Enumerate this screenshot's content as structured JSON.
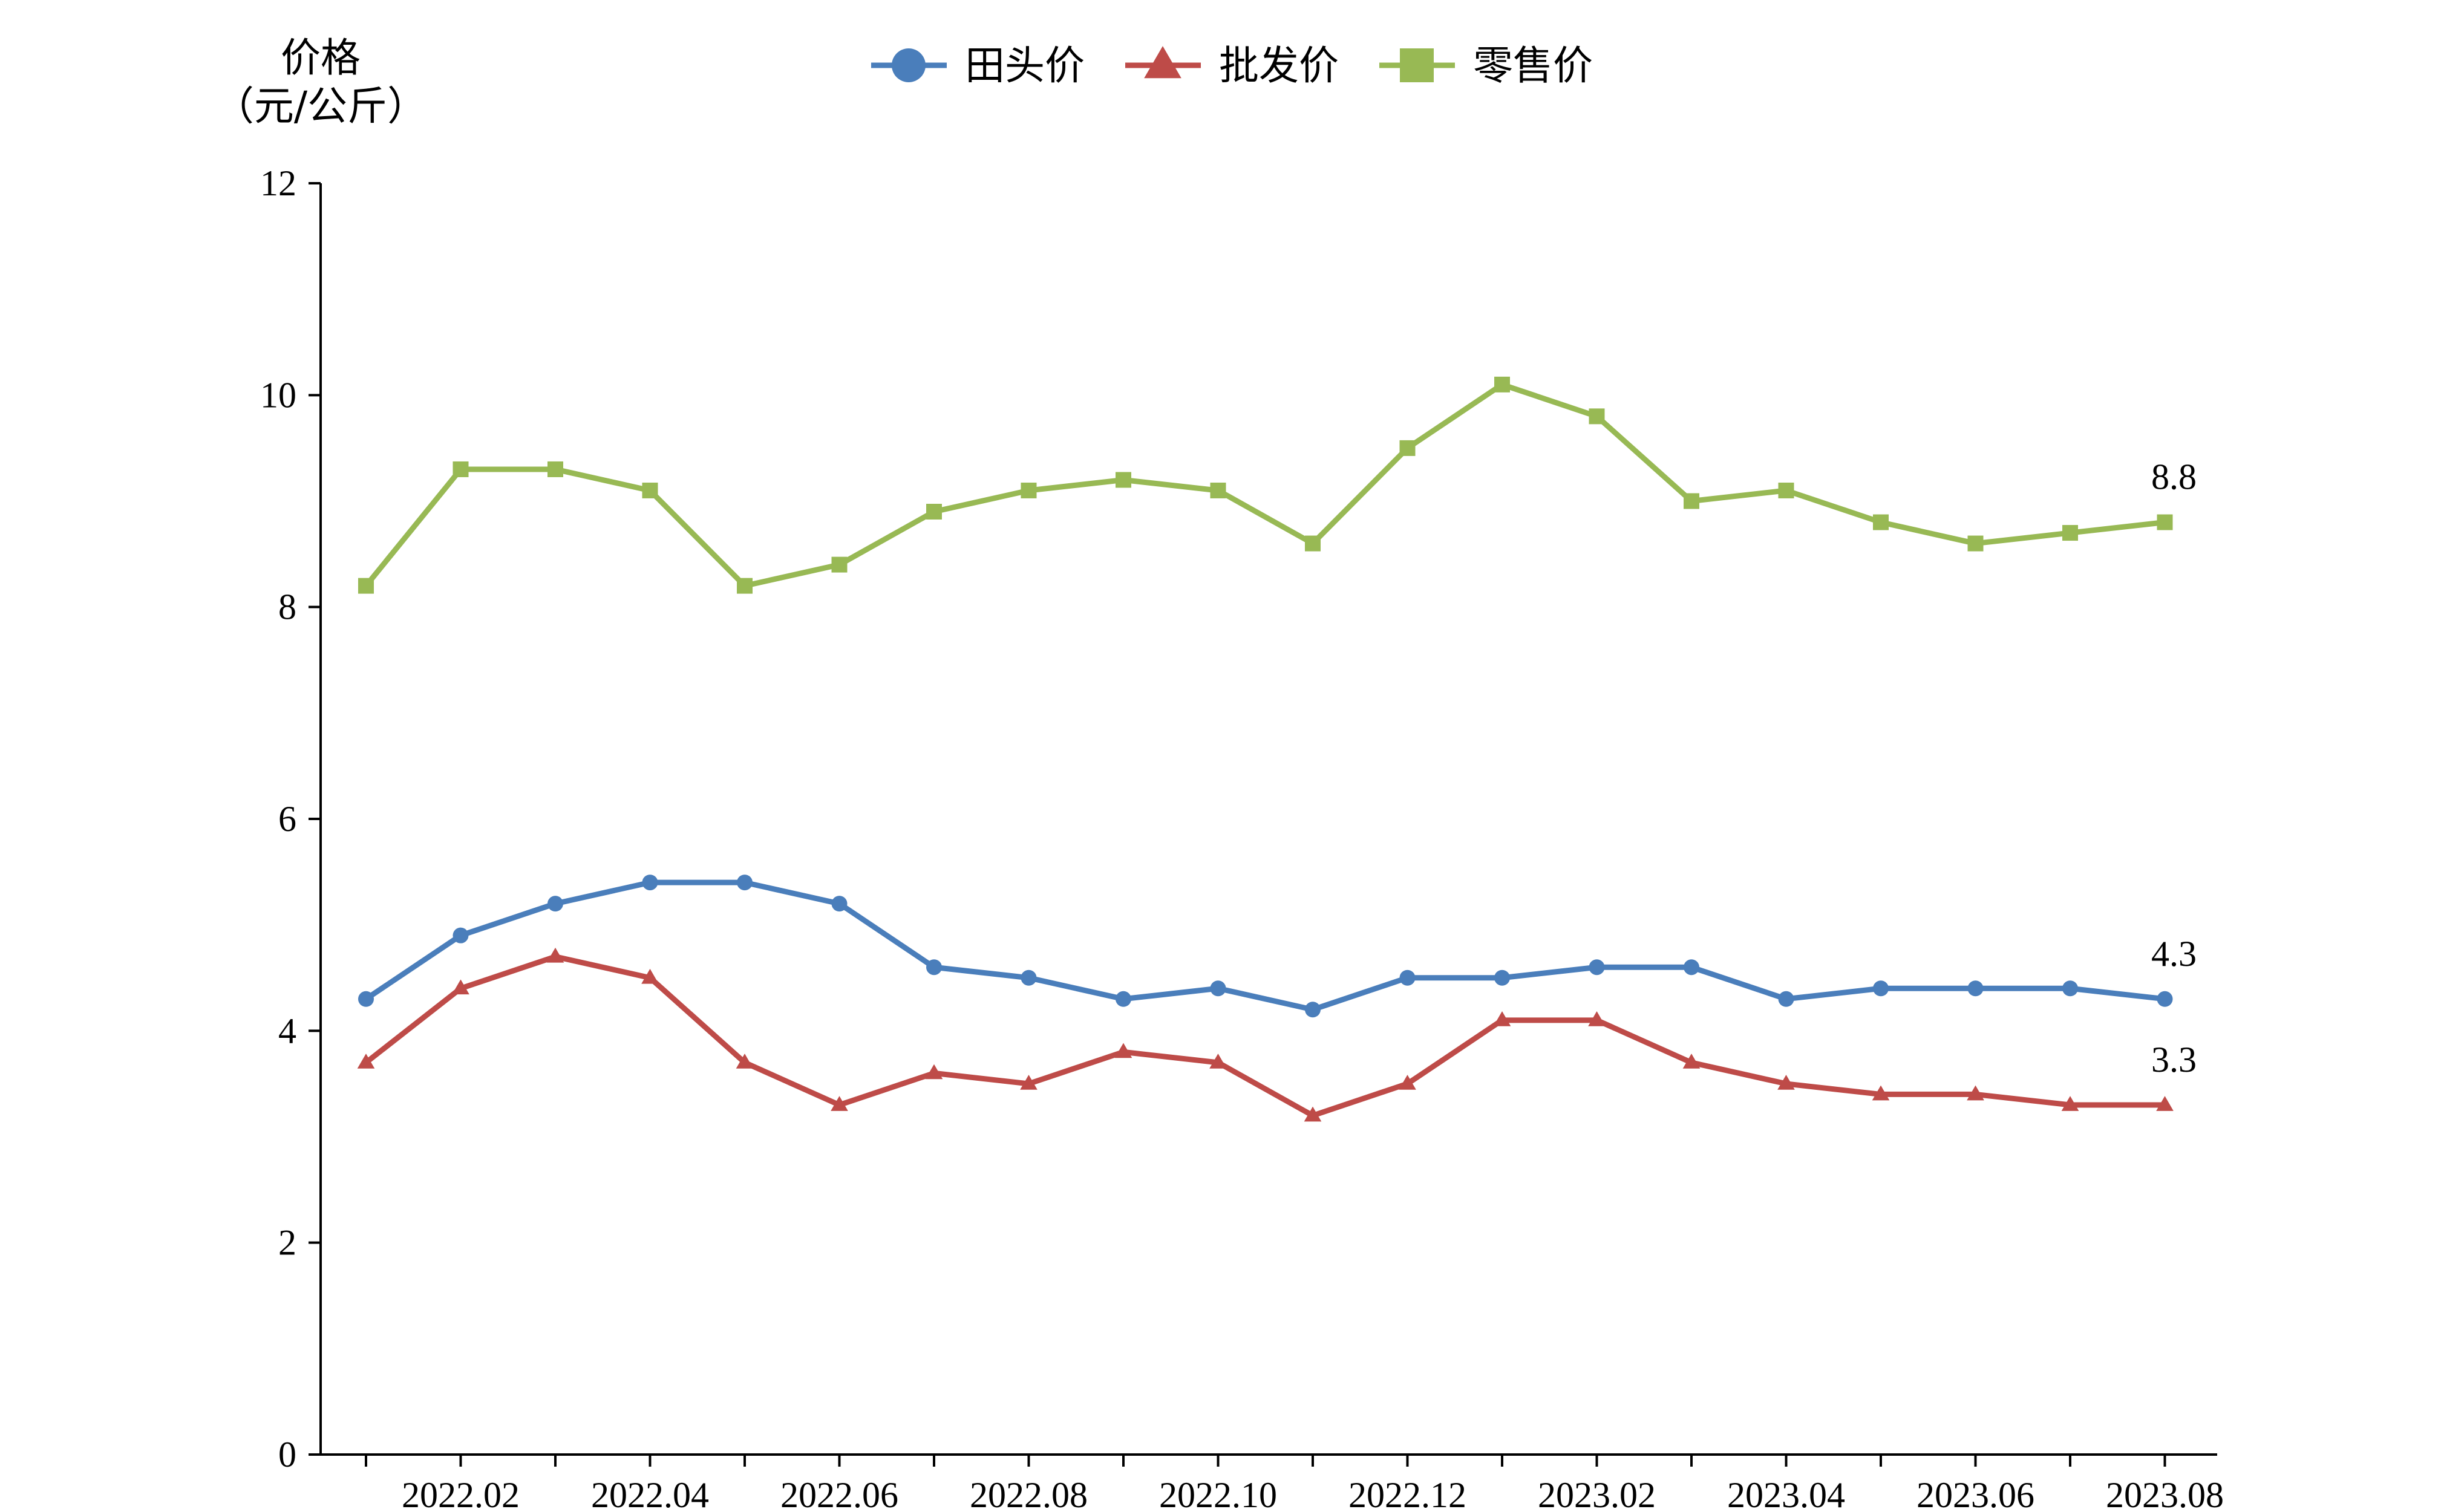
{
  "chart_data": {
    "type": "line",
    "ylabel_line1": "价格",
    "ylabel_line2": "（元/公斤）",
    "ylim": [
      0,
      12
    ],
    "yticks": [
      "0",
      "2",
      "4",
      "6",
      "8",
      "10",
      "12"
    ],
    "x": [
      "2022.01",
      "2022.02",
      "2022.03",
      "2022.04",
      "2022.05",
      "2022.06",
      "2022.07",
      "2022.08",
      "2022.09",
      "2022.10",
      "2022.11",
      "2022.12",
      "2023.01",
      "2023.02",
      "2023.03",
      "2023.04",
      "2023.05",
      "2023.06",
      "2023.07",
      "2023.08"
    ],
    "xtick_labels": [
      "2022.02",
      "2022.04",
      "2022.06",
      "2022.08",
      "2022.10",
      "2022.12",
      "2023.02",
      "2023.04",
      "2023.06",
      "2023.08"
    ],
    "grid": false,
    "legend_position": "top-center",
    "series": [
      {
        "name": "田头价",
        "color": "#4a7ebb",
        "marker": "circle",
        "values": [
          4.3,
          4.9,
          5.2,
          5.4,
          5.4,
          5.2,
          4.6,
          4.5,
          4.3,
          4.4,
          4.2,
          4.5,
          4.5,
          4.6,
          4.6,
          4.3,
          4.4,
          4.4,
          4.4,
          4.3
        ],
        "end_label": "4.3"
      },
      {
        "name": "批发价",
        "color": "#be4b48",
        "marker": "triangle",
        "values": [
          3.7,
          4.4,
          4.7,
          4.5,
          3.7,
          3.3,
          3.6,
          3.5,
          3.8,
          3.7,
          3.2,
          3.5,
          4.1,
          4.1,
          3.7,
          3.5,
          3.4,
          3.4,
          3.3,
          3.3
        ],
        "end_label": "3.3"
      },
      {
        "name": "零售价",
        "color": "#98b954",
        "marker": "square",
        "values": [
          8.2,
          9.3,
          9.3,
          9.1,
          8.2,
          8.4,
          8.9,
          9.1,
          9.2,
          9.1,
          8.6,
          9.5,
          10.1,
          9.8,
          9.0,
          9.1,
          8.8,
          8.6,
          8.7,
          8.8
        ],
        "end_label": "8.8"
      }
    ]
  }
}
